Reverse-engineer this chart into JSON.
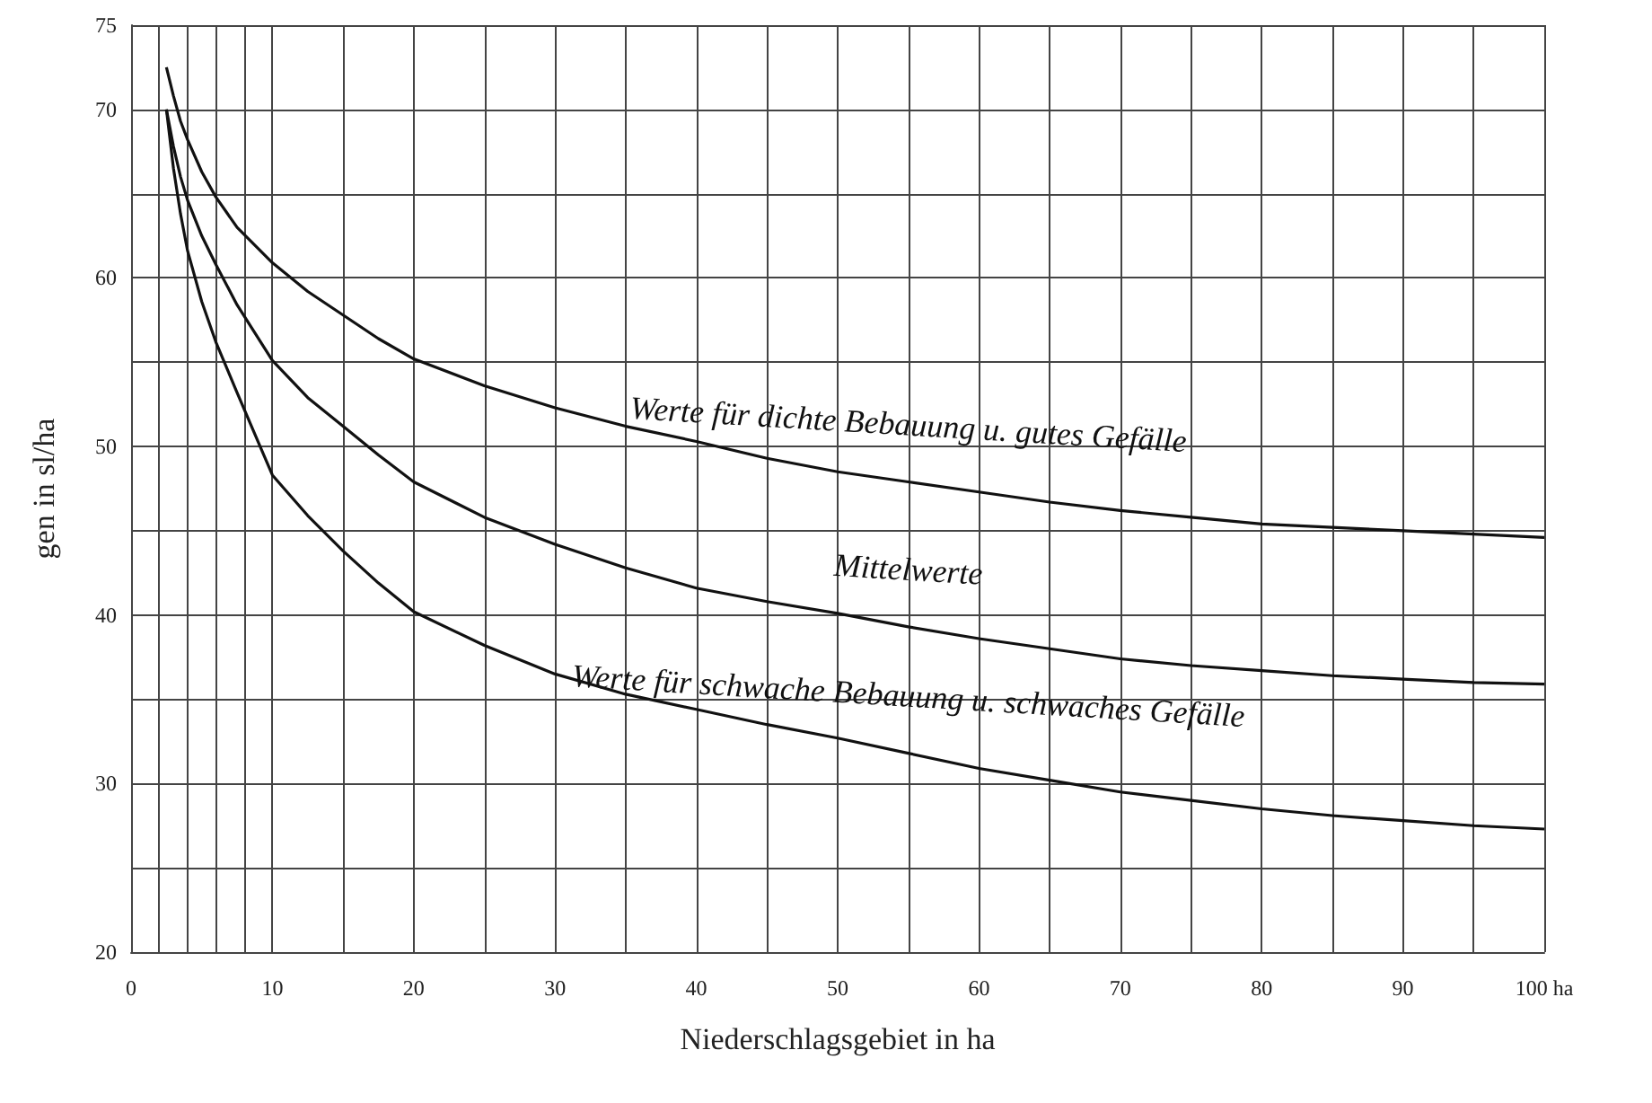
{
  "chart_data": {
    "type": "line",
    "xlabel": "Niederschlagsgebiet in ha",
    "ylabel": "gen in sl/ha",
    "x": [
      2.5,
      3,
      3.5,
      4,
      5,
      6,
      7.5,
      10,
      12.5,
      15,
      17.5,
      20,
      25,
      30,
      35,
      40,
      45,
      50,
      55,
      60,
      65,
      70,
      75,
      80,
      85,
      90,
      95,
      100
    ],
    "series": [
      {
        "color": "#111111",
        "values": [
          72.5,
          70.8,
          69.3,
          68.2,
          66.3,
          64.8,
          63,
          60.9,
          59.2,
          57.8,
          56.4,
          55.2,
          53.6,
          52.3,
          51.2,
          50.3,
          49.3,
          48.5,
          47.9,
          47.3,
          46.7,
          46.2,
          45.8,
          45.4,
          45.2,
          45.0,
          44.8,
          44.6
        ]
      },
      {
        "color": "#111111",
        "values": [
          70,
          67.8,
          66,
          64.6,
          62.5,
          60.8,
          58.4,
          55.1,
          52.9,
          51.2,
          49.5,
          47.9,
          45.8,
          44.2,
          42.8,
          41.6,
          40.8,
          40.1,
          39.3,
          38.6,
          38.0,
          37.4,
          37.0,
          36.7,
          36.4,
          36.2,
          36.0,
          35.9
        ]
      },
      {
        "color": "#111111",
        "values": [
          70,
          66.5,
          63.8,
          61.6,
          58.6,
          56.2,
          53.2,
          48.3,
          45.9,
          43.8,
          41.9,
          40.2,
          38.2,
          36.5,
          35.3,
          34.4,
          33.5,
          32.7,
          31.8,
          30.9,
          30.2,
          29.5,
          29.0,
          28.5,
          28.1,
          27.8,
          27.5,
          27.3
        ]
      }
    ],
    "xlim": [
      0,
      100
    ],
    "xticks": [
      0,
      {
        "value": 2,
        "label": null
      },
      {
        "value": 4,
        "label": null
      },
      {
        "value": 6,
        "label": null
      },
      {
        "value": 8,
        "label": null
      },
      10,
      {
        "value": 15,
        "label": null
      },
      20,
      {
        "value": 25,
        "label": null
      },
      30,
      {
        "value": 35,
        "label": null
      },
      40,
      {
        "value": 45,
        "label": null
      },
      50,
      {
        "value": 55,
        "label": null
      },
      60,
      {
        "value": 65,
        "label": null
      },
      70,
      {
        "value": 75,
        "label": null
      },
      80,
      {
        "value": 85,
        "label": null
      },
      90,
      {
        "value": 95,
        "label": null
      },
      {
        "value": 100,
        "label": "100 ha"
      }
    ],
    "ylim": [
      20,
      75
    ],
    "yticks": [
      20,
      {
        "value": 25,
        "label": null
      },
      30,
      {
        "value": 35,
        "label": null
      },
      40,
      {
        "value": 45,
        "label": null
      },
      50,
      {
        "value": 55,
        "label": null
      },
      60,
      {
        "value": 65,
        "label": null
      },
      70,
      75
    ],
    "grid": true,
    "marker": "none",
    "line_style": "solid",
    "annotations": [
      "Werte für dichte Bebauung u. gutes Gefälle",
      "Mittelwerte",
      "Werte für schwache Bebauung u. schwaches Gefälle"
    ]
  }
}
